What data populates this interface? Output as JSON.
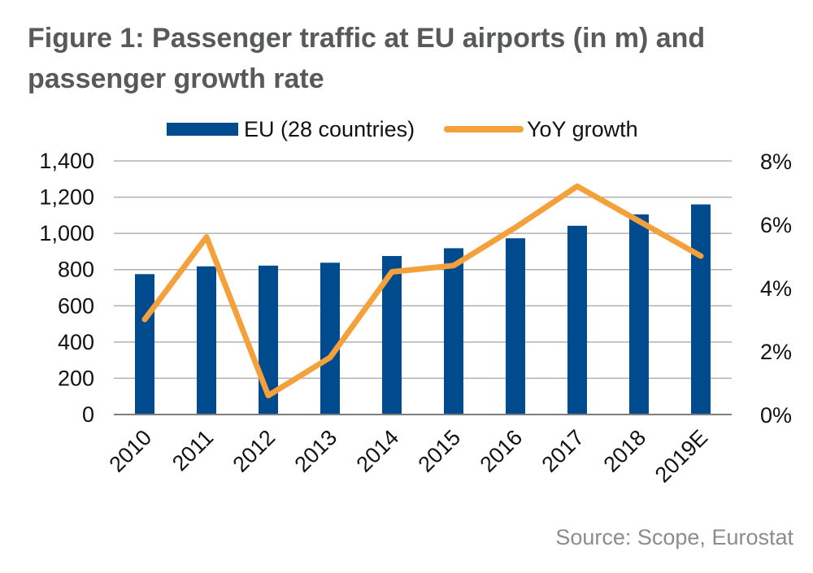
{
  "title": "Figure 1: Passenger traffic at EU airports (in m) and passenger growth rate",
  "source": "Source: Scope, Eurostat",
  "chart_data": {
    "type": "bar",
    "categories": [
      "2010",
      "2011",
      "2012",
      "2013",
      "2014",
      "2015",
      "2016",
      "2017",
      "2018",
      "2019E"
    ],
    "series": [
      {
        "name": "EU (28 countries)",
        "type": "bar",
        "axis": "left",
        "color": "#004b8d",
        "values": [
          775,
          818,
          822,
          838,
          875,
          918,
          973,
          1042,
          1105,
          1160
        ]
      },
      {
        "name": "YoY growth",
        "type": "line",
        "axis": "right",
        "color": "#f4a13c",
        "values": [
          3.0,
          5.6,
          0.6,
          1.8,
          4.5,
          4.7,
          5.9,
          7.2,
          6.1,
          5.0
        ]
      }
    ],
    "y_left": {
      "min": 0,
      "max": 1400,
      "step": 200,
      "ticks": [
        "0",
        "200",
        "400",
        "600",
        "800",
        "1,000",
        "1,200",
        "1,400"
      ]
    },
    "y_right": {
      "min": 0,
      "max": 8,
      "step": 2,
      "ticks": [
        "0%",
        "2%",
        "4%",
        "6%",
        "8%"
      ]
    },
    "grid": true,
    "legend_position": "top",
    "xlabel": "",
    "ylabel": ""
  }
}
